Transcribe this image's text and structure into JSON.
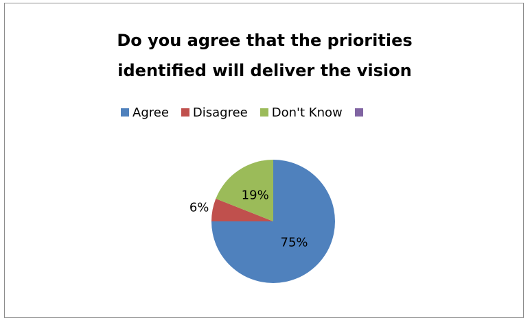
{
  "chart_data": {
    "type": "pie",
    "title_lines": [
      "Do you agree that the priorities",
      "identified will deliver the vision"
    ],
    "slices": [
      {
        "label": "Agree",
        "value": 75,
        "data_label": "75%",
        "color": "#4f81bd"
      },
      {
        "label": "Disagree",
        "value": 6,
        "data_label": "6%",
        "color": "#c0504d"
      },
      {
        "label": "Don't Know",
        "value": 19,
        "data_label": "19%",
        "color": "#9bbb59"
      }
    ],
    "legend": {
      "placement": "top",
      "entries": [
        {
          "label": "Agree",
          "color": "#4f81bd"
        },
        {
          "label": "Disagree",
          "color": "#c0504d"
        },
        {
          "label": "Don't Know",
          "color": "#9bbb59"
        },
        {
          "label": "",
          "color": "#8064a2"
        }
      ]
    }
  }
}
